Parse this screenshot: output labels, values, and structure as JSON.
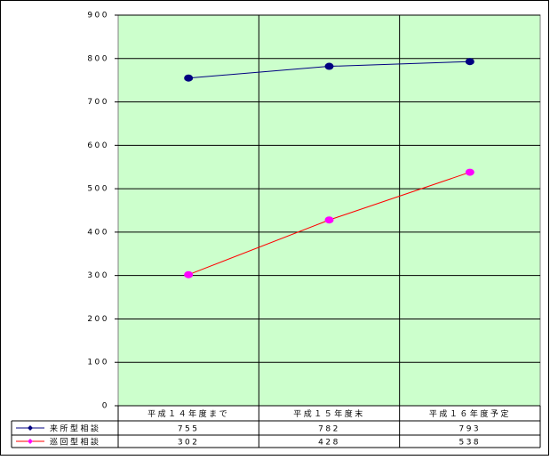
{
  "chart_data": {
    "type": "line",
    "categories": [
      "平成１４年度まで",
      "平成１５年度末",
      "平成１６年度予定"
    ],
    "series": [
      {
        "name": "来所型相談",
        "color": "#000080",
        "marker_color": "#000080",
        "values": [
          755,
          782,
          793
        ]
      },
      {
        "name": "巡回型相談",
        "color": "#ff0000",
        "marker_color": "#ff00ff",
        "values": [
          302,
          428,
          538
        ]
      }
    ],
    "ylim": [
      0,
      900
    ],
    "yticks": [
      0,
      100,
      200,
      300,
      400,
      500,
      600,
      700,
      800,
      900
    ],
    "grid": true,
    "plot_background": "#ccffcc",
    "data_table": true
  }
}
